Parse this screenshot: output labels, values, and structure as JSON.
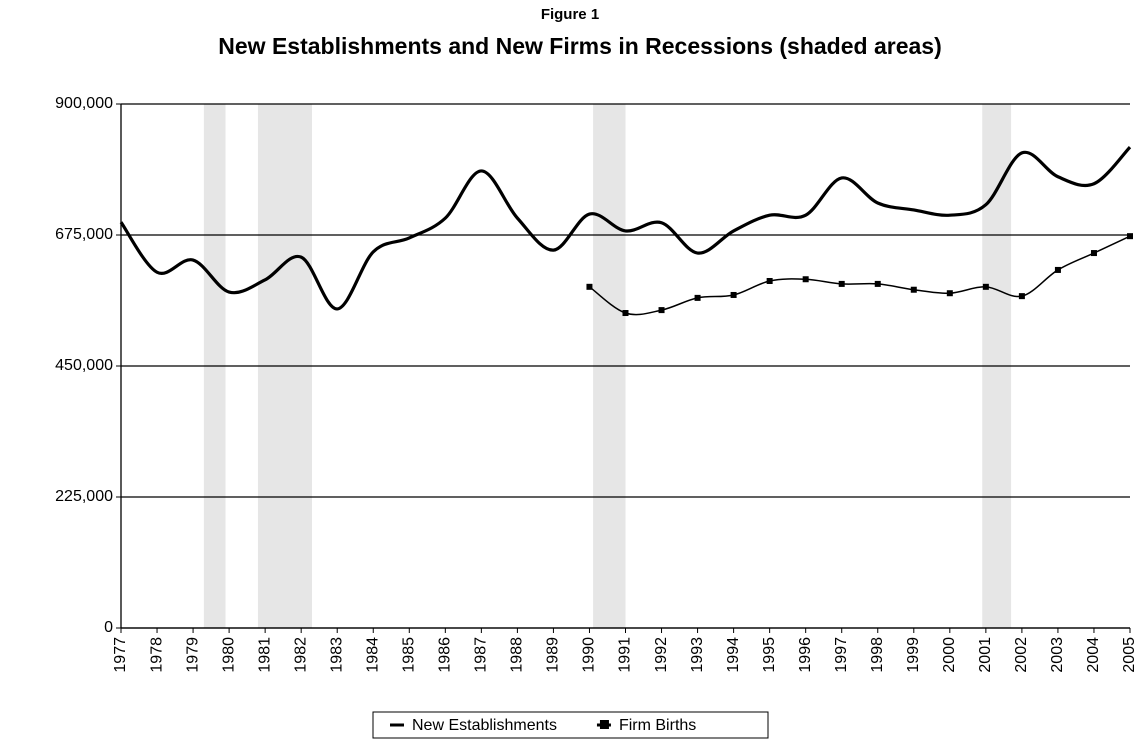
{
  "chart_data": {
    "type": "line",
    "supertitle": "Figure 1",
    "title": "New Establishments and New Firms in Recessions (shaded areas)",
    "x": [
      1977,
      1978,
      1979,
      1980,
      1981,
      1982,
      1983,
      1984,
      1985,
      1986,
      1987,
      1988,
      1989,
      1990,
      1991,
      1992,
      1993,
      1994,
      1995,
      1996,
      1997,
      1998,
      1999,
      2000,
      2001,
      2002,
      2003,
      2004,
      2005
    ],
    "xlim": [
      1977,
      2005
    ],
    "xticks": [
      1977,
      1978,
      1979,
      1980,
      1981,
      1982,
      1983,
      1984,
      1985,
      1986,
      1987,
      1988,
      1989,
      1990,
      1991,
      1992,
      1993,
      1994,
      1995,
      1996,
      1997,
      1998,
      1999,
      2000,
      2001,
      2002,
      2003,
      2004,
      2005
    ],
    "ylim": [
      0,
      900000
    ],
    "yticks": [
      0,
      {
        "value": 225000,
        "label": "225,000"
      },
      {
        "value": 450000,
        "label": "450,000"
      },
      {
        "value": 675000,
        "label": "675,000"
      },
      {
        "value": 900000,
        "label": "900,000"
      }
    ],
    "grid": true,
    "recessions": [
      [
        1979.3,
        1979.9
      ],
      [
        1980.8,
        1982.3
      ],
      [
        1990.1,
        1991.0
      ],
      [
        2000.9,
        2001.7
      ]
    ],
    "recession_color": "#e6e6e6",
    "smooth": true,
    "legend": "bottom",
    "series": [
      {
        "name": "New Establishments",
        "color": "#000000",
        "marker": false,
        "values": [
          697000,
          611000,
          632000,
          577000,
          598000,
          637000,
          548000,
          646000,
          670000,
          704000,
          785000,
          704000,
          649000,
          711000,
          682000,
          696000,
          644000,
          682000,
          709000,
          709000,
          773000,
          730000,
          718000,
          709000,
          727000,
          816000,
          775000,
          763000,
          826000
        ]
      },
      {
        "name": "Firm Births",
        "color": "#000000",
        "marker": true,
        "values": [
          null,
          null,
          null,
          null,
          null,
          null,
          null,
          null,
          null,
          null,
          null,
          null,
          null,
          586000,
          541000,
          546000,
          567000,
          572000,
          596000,
          599000,
          591000,
          591000,
          581000,
          575000,
          586000,
          570000,
          615000,
          644000,
          673000
        ]
      }
    ]
  }
}
